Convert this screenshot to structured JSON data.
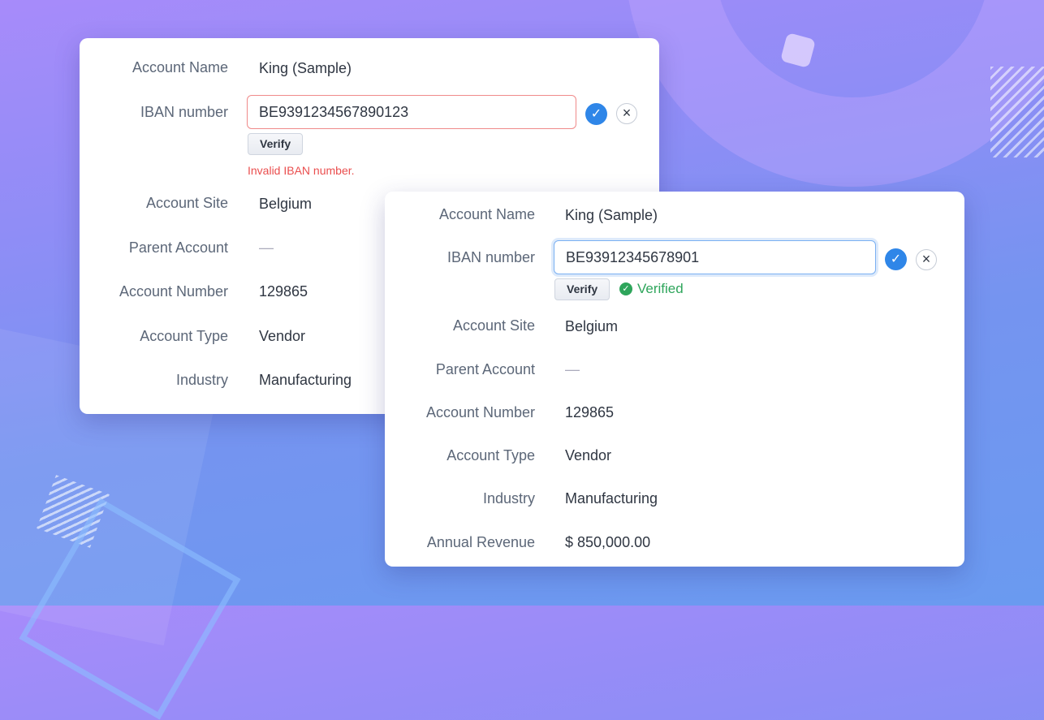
{
  "colors": {
    "error": "#ea4e4e",
    "success": "#2ea55b",
    "accent": "#2f86e8"
  },
  "card_invalid": {
    "account_name_label": "Account Name",
    "account_name": "King (Sample)",
    "iban_label": "IBAN number",
    "iban_value": "BE9391234567890123",
    "verify_label": "Verify",
    "error_text": "Invalid IBAN number.",
    "account_site_label": "Account Site",
    "account_site": "Belgium",
    "parent_account_label": "Parent Account",
    "parent_account": "—",
    "account_number_label": "Account Number",
    "account_number": "129865",
    "account_type_label": "Account Type",
    "account_type": "Vendor",
    "industry_label": "Industry",
    "industry": "Manufacturing"
  },
  "card_valid": {
    "account_name_label": "Account Name",
    "account_name": "King (Sample)",
    "iban_label": "IBAN number",
    "iban_value": "BE93912345678901",
    "verify_label": "Verify",
    "verified_text": "Verified",
    "account_site_label": "Account Site",
    "account_site": "Belgium",
    "parent_account_label": "Parent Account",
    "parent_account": "—",
    "account_number_label": "Account Number",
    "account_number": "129865",
    "account_type_label": "Account Type",
    "account_type": "Vendor",
    "industry_label": "Industry",
    "industry": "Manufacturing",
    "annual_revenue_label": "Annual Revenue",
    "annual_revenue": "$ 850,000.00"
  }
}
